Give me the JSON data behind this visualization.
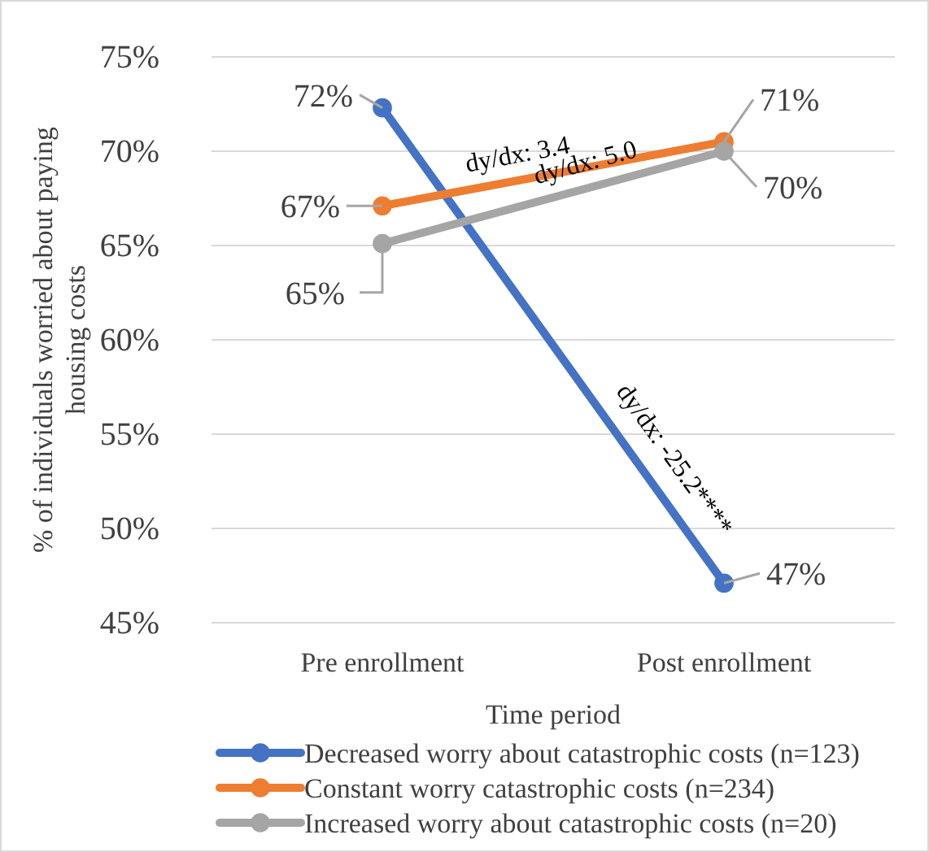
{
  "chart_data": {
    "type": "line",
    "xlabel": "Time period",
    "ylabel": "% of individuals worried about paying housing costs",
    "categories": [
      "Pre enrollment",
      "Post enrollment"
    ],
    "series": [
      {
        "name": "Decreased worry about catastrophic costs (n=123)",
        "color": "#4472c4",
        "values": [
          72.3,
          47.1
        ],
        "value_labels": [
          "72%",
          "47%"
        ]
      },
      {
        "name": "Constant worry catastrophic costs (n=234)",
        "color": "#ed7d31",
        "values": [
          67.1,
          70.5
        ],
        "value_labels": [
          "67%",
          "71%"
        ]
      },
      {
        "name": "Increased worry about catastrophic costs (n=20)",
        "color": "#a5a5a5",
        "values": [
          65.1,
          70.0
        ],
        "value_labels": [
          "65%",
          "70%"
        ]
      }
    ],
    "annotations": [
      "dy/dx: -25.2****",
      "dy/dx: 3.4",
      "dy/dx: 5.0"
    ],
    "ylim": [
      45,
      75
    ],
    "yticks": [
      {
        "value": 45,
        "label": "45%"
      },
      {
        "value": 50,
        "label": "50%"
      },
      {
        "value": 55,
        "label": "55%"
      },
      {
        "value": 60,
        "label": "60%"
      },
      {
        "value": 65,
        "label": "65%"
      },
      {
        "value": 70,
        "label": "70%"
      },
      {
        "value": 75,
        "label": "75%"
      }
    ],
    "grid": "y",
    "legend": "bottom",
    "marker": "circle",
    "line_style": "solid"
  }
}
